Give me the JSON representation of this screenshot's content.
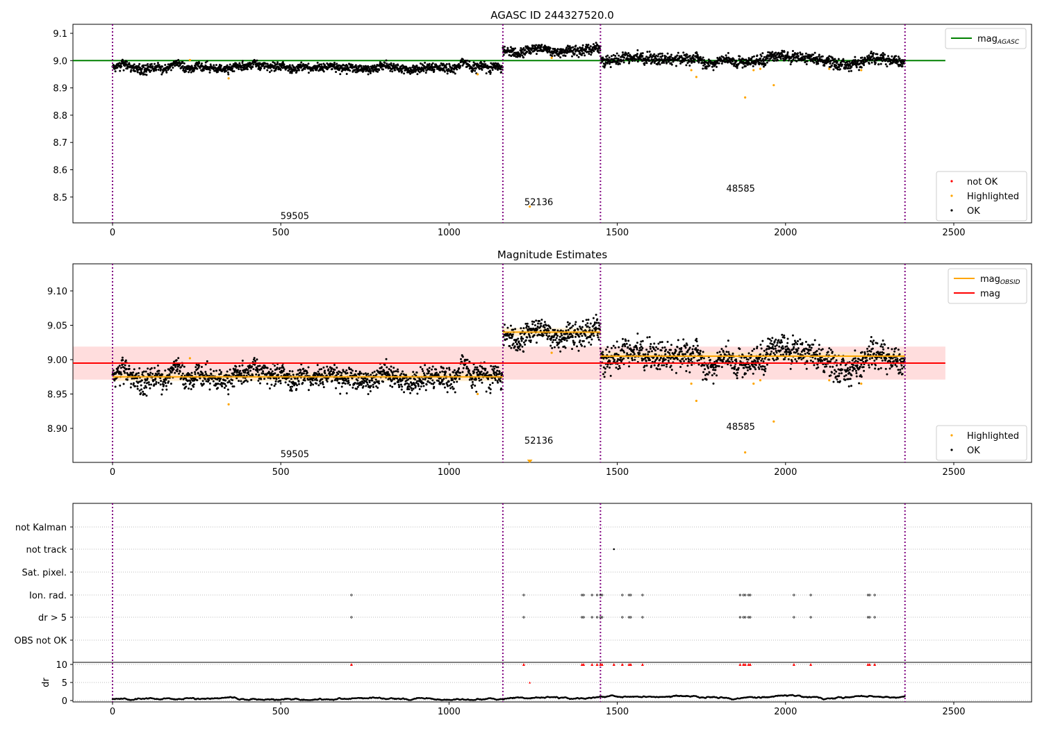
{
  "chart_data": [
    {
      "type": "scatter",
      "title": "AGASC ID 244327520.0",
      "xlim": [
        -118,
        2730
      ],
      "ylim": [
        8.41,
        9.13
      ],
      "xticks": [
        "0",
        "500",
        "1000",
        "1500",
        "2000",
        "2500"
      ],
      "yticks": [
        "8.5",
        "8.6",
        "8.7",
        "8.8",
        "8.9",
        "9.0",
        "9.1"
      ],
      "mag_agasc": 9.0,
      "obsid_boundaries": [
        0,
        1160,
        1450,
        2355
      ],
      "segments": [
        {
          "start": 0,
          "end": 1160,
          "mean": 8.975,
          "noise": 0.008
        },
        {
          "start": 1160,
          "end": 1450,
          "mean": 9.04,
          "noise": 0.009
        },
        {
          "start": 1450,
          "end": 2355,
          "mean": 9.005,
          "noise": 0.01
        }
      ],
      "highlighted": [
        [
          230,
          9.002
        ],
        [
          345,
          8.935
        ],
        [
          1085,
          8.95
        ],
        [
          1240,
          8.465
        ],
        [
          1305,
          9.01
        ],
        [
          1720,
          8.965
        ],
        [
          1735,
          8.94
        ],
        [
          1880,
          8.865
        ],
        [
          1905,
          8.965
        ],
        [
          1925,
          8.97
        ],
        [
          1965,
          8.91
        ],
        [
          2130,
          8.97
        ],
        [
          2225,
          8.965
        ]
      ],
      "annotations": [
        {
          "text": "59505",
          "x": 530,
          "y": 8.43
        },
        {
          "text": "52136",
          "x": 1255,
          "y": 8.48
        },
        {
          "text": "48585",
          "x": 1855,
          "y": 8.53
        }
      ],
      "legend_top": {
        "label": "mag",
        "sub": "AGASC"
      },
      "legend_bottom": [
        "not OK",
        "Highlighted",
        "OK"
      ]
    },
    {
      "type": "scatter",
      "title": "Magnitude Estimates",
      "xlim": [
        -118,
        2730
      ],
      "ylim": [
        8.852,
        9.139
      ],
      "xticks": [
        "0",
        "500",
        "1000",
        "1500",
        "2000",
        "2500"
      ],
      "yticks": [
        "8.90",
        "8.95",
        "9.00",
        "9.05",
        "9.10"
      ],
      "mag": 8.995,
      "mag_band": [
        8.971,
        9.019
      ],
      "mag_obsid": [
        8.975,
        9.04,
        9.005
      ],
      "annotations": [
        {
          "text": "59505",
          "x": 530,
          "y": 8.862
        },
        {
          "text": "52136",
          "x": 1255,
          "y": 8.882
        },
        {
          "text": "48585",
          "x": 1855,
          "y": 8.902
        }
      ],
      "legend_top": [
        {
          "label": "mag",
          "sub": "OBSID"
        },
        {
          "label": "mag",
          "sub": ""
        }
      ],
      "legend_bottom": [
        "Highlighted",
        "OK"
      ]
    },
    {
      "type": "scatter",
      "flag_labels": [
        "not Kalman",
        "not track",
        "Sat. pixel.",
        "Ion. rad.",
        "dr > 5",
        "OBS not OK"
      ],
      "ylabel": "dr",
      "dr_ticks": [
        "0",
        "5",
        "10"
      ],
      "xticks": [
        "0",
        "500",
        "1000",
        "1500",
        "2000",
        "2500"
      ],
      "ion_rad_x": [
        710,
        1222,
        1395,
        1400,
        1425,
        1440,
        1450,
        1455,
        1515,
        1535,
        1540,
        1575,
        1865,
        1875,
        1880,
        1890,
        1895,
        2025,
        2075,
        2245,
        2250,
        2265
      ],
      "not_track_x": [
        1490
      ],
      "dr_high_x": [
        710,
        1222,
        1395,
        1400,
        1425,
        1440,
        1450,
        1455,
        1490,
        1515,
        1535,
        1540,
        1575,
        1865,
        1875,
        1880,
        1890,
        1895,
        2025,
        2075,
        2245,
        2250,
        2265
      ],
      "dr_mid": [
        [
          1240,
          5
        ]
      ]
    }
  ],
  "colors": {
    "ok": "#000000",
    "highlighted": "#ffa500",
    "not_ok": "#ff0000",
    "agasc": "#008000",
    "mag": "#ff0000",
    "obsid": "#ffa500",
    "boundary": "#800080"
  }
}
